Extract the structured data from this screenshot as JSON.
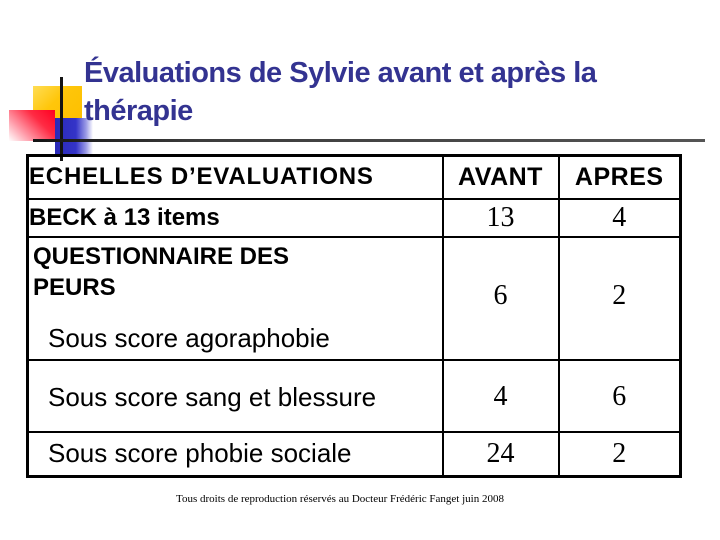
{
  "slide": {
    "title_lines": [
      "Évaluations de Sylvie avant et après la",
      "thérapie"
    ],
    "footer": "Tous droits de reproduction réservés au Docteur Frédéric Fanget juin 2008"
  },
  "colors": {
    "title_text": "#333391",
    "accent_yellow": "#FFC60A",
    "accent_red": "#FF0021",
    "accent_blue": "#3434C8",
    "table_border": "#000000",
    "background": "#FFFFFF"
  },
  "table": {
    "col_headers": {
      "scale": "ECHELLES D’EVALUATIONS",
      "avant": "AVANT",
      "apres": "APRES"
    },
    "rows": [
      {
        "label": "BECK à 13 items",
        "avant": "13",
        "apres": "4"
      },
      {
        "group": "QUESTIONNAIRE DES PEURS",
        "label": "Sous score agoraphobie",
        "avant": "6",
        "apres": "2"
      },
      {
        "label": "Sous score sang et blessure",
        "avant": "4",
        "apres": "6"
      },
      {
        "label": "Sous score phobie sociale",
        "avant": "24",
        "apres": "2"
      }
    ]
  }
}
